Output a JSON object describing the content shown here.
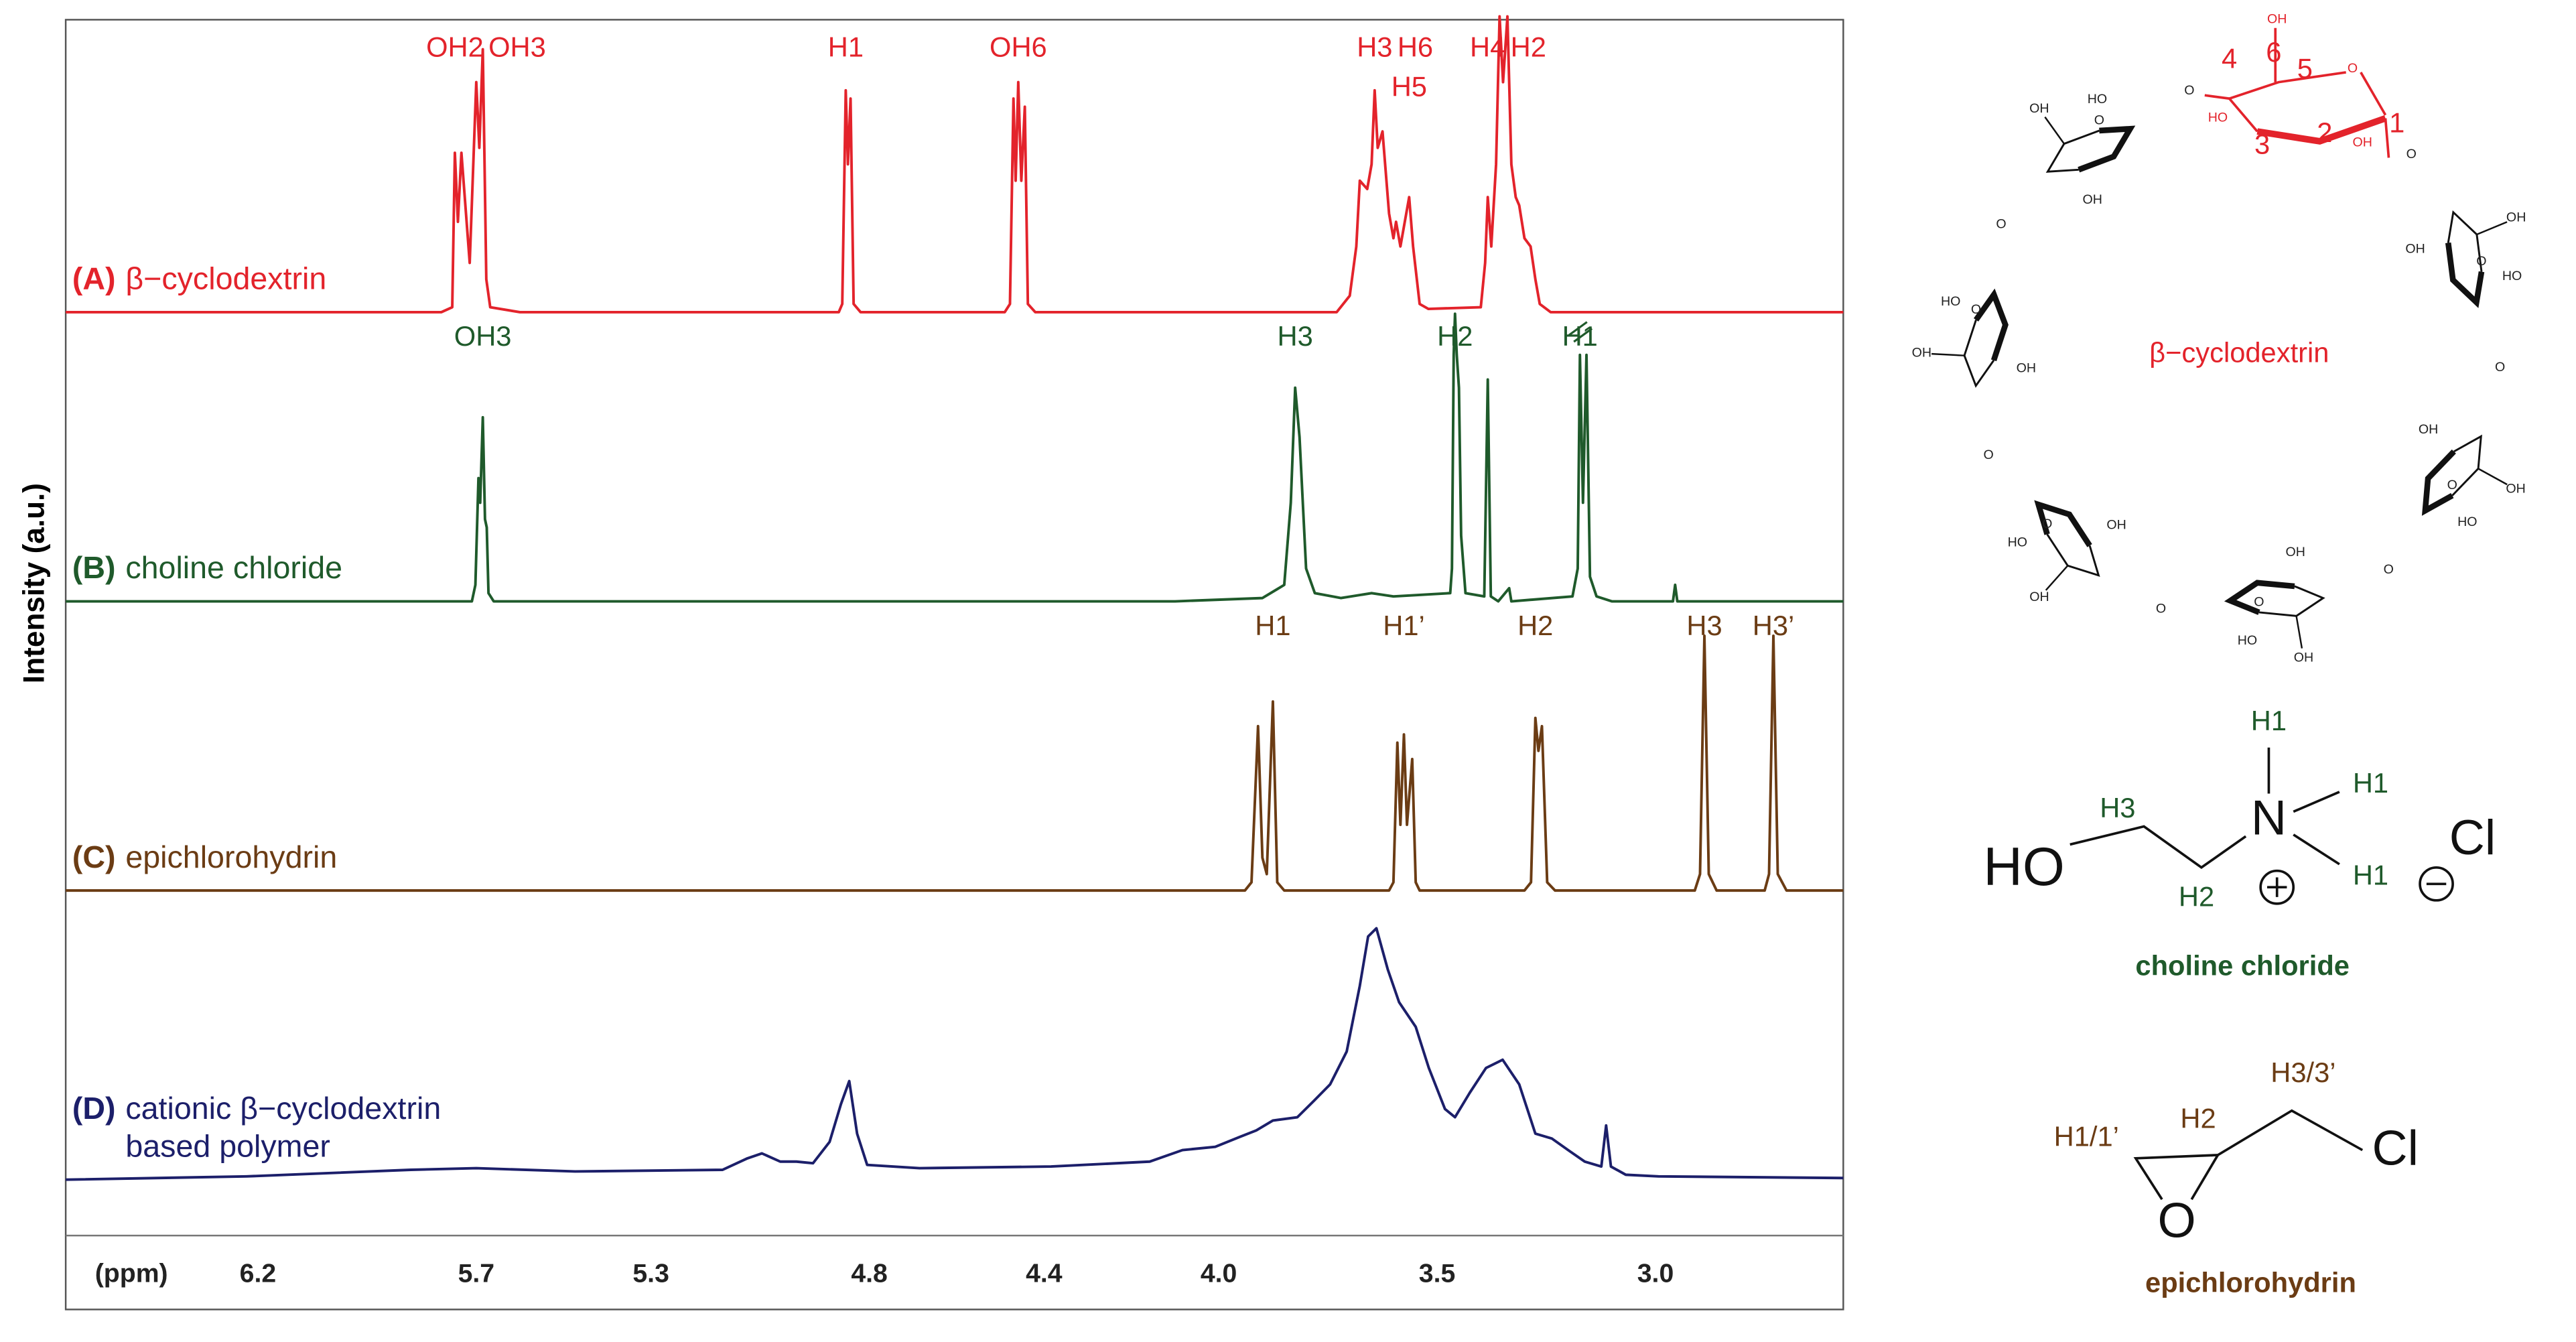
{
  "chart_data": {
    "type": "line",
    "y_label": "Intensity (a.u.)",
    "x_label": "(ppm)",
    "xlim": [
      6.64,
      2.57
    ],
    "ylim": [
      0,
      180
    ],
    "xticks": [
      6.2,
      5.7,
      5.3,
      4.8,
      4.4,
      {
        "value": 4,
        "label": "4.0"
      },
      3.5,
      {
        "value": 3,
        "label": "3.0"
      }
    ],
    "series": [
      {
        "letter": "(A)",
        "name": "β−cyclodextrin",
        "color": "#e3232b",
        "x": [
          6.64,
          5.78,
          5.755,
          5.749,
          5.742,
          5.734,
          5.715,
          5.7,
          5.693,
          5.685,
          5.677,
          5.668,
          5.6,
          4.87,
          4.862,
          4.854,
          4.849,
          4.843,
          4.836,
          4.82,
          4.49,
          4.478,
          4.47,
          4.465,
          4.459,
          4.452,
          4.444,
          4.437,
          4.42,
          3.73,
          3.7,
          3.685,
          3.677,
          3.66,
          3.65,
          3.643,
          3.636,
          3.625,
          3.61,
          3.6,
          3.594,
          3.584,
          3.564,
          3.555,
          3.54,
          3.52,
          3.4,
          3.39,
          3.384,
          3.376,
          3.365,
          3.357,
          3.349,
          3.339,
          3.33,
          3.32,
          3.312,
          3.3,
          3.286,
          3.275,
          3.265,
          3.24,
          2.57
        ],
        "values": [
          0,
          0,
          3,
          97,
          55,
          97,
          30,
          140,
          100,
          160,
          20,
          3,
          0,
          0,
          5,
          135,
          90,
          130,
          5,
          0,
          0,
          5,
          130,
          80,
          140,
          80,
          125,
          5,
          0,
          0,
          10,
          40,
          80,
          75,
          90,
          135,
          100,
          110,
          60,
          45,
          55,
          40,
          70,
          40,
          5,
          2,
          3,
          30,
          70,
          40,
          90,
          180,
          140,
          180,
          90,
          70,
          65,
          45,
          40,
          20,
          5,
          0,
          0
        ],
        "peak_labels": [
          null,
          null,
          null,
          "OH2",
          null,
          null,
          null,
          null,
          null,
          "OH3",
          null,
          null,
          null,
          null,
          null,
          "H1",
          null,
          null,
          null,
          null,
          null,
          null,
          null,
          null,
          "OH6",
          null,
          null,
          null,
          null,
          null,
          null,
          null,
          null,
          null,
          null,
          "H3",
          null,
          "H6",
          null,
          null,
          null,
          null,
          "H5",
          null,
          null,
          null,
          null,
          null,
          "H4",
          null,
          null,
          null,
          null,
          "H2",
          null,
          null,
          null,
          null,
          null,
          null,
          null,
          null,
          null
        ]
      },
      {
        "letter": "(B)",
        "name": "choline chloride",
        "color": "#1f5a2b",
        "x": [
          6.64,
          5.71,
          5.702,
          5.695,
          5.691,
          5.685,
          5.68,
          5.676,
          5.672,
          5.66,
          4.1,
          3.9,
          3.85,
          3.835,
          3.825,
          3.815,
          3.8,
          3.78,
          3.72,
          3.65,
          3.6,
          3.47,
          3.466,
          3.462,
          3.459,
          3.455,
          3.45,
          3.445,
          3.435,
          3.392,
          3.384,
          3.377,
          3.36,
          3.335,
          3.33,
          3.19,
          3.178,
          3.173,
          3.166,
          3.158,
          3.15,
          3.135,
          3.1,
          2.96,
          2.955,
          2.95,
          2.57
        ],
        "values": [
          0,
          0,
          10,
          75,
          60,
          112,
          50,
          45,
          5,
          0,
          0,
          2,
          10,
          60,
          130,
          100,
          20,
          5,
          2,
          5,
          3,
          5,
          20,
          150,
          175,
          150,
          130,
          40,
          5,
          3,
          135,
          3,
          0,
          8,
          0,
          3,
          20,
          150,
          60,
          150,
          15,
          3,
          0,
          0,
          10,
          0,
          0
        ],
        "peak_labels": [
          null,
          null,
          null,
          null,
          null,
          "OH3",
          null,
          null,
          null,
          null,
          null,
          null,
          null,
          null,
          "H3",
          null,
          null,
          null,
          null,
          null,
          null,
          null,
          null,
          null,
          "H2",
          null,
          null,
          null,
          null,
          null,
          null,
          null,
          null,
          null,
          null,
          null,
          null,
          "H1",
          null,
          null,
          null,
          null,
          null,
          null,
          null,
          null,
          null
        ]
      },
      {
        "letter": "(C)",
        "name": "epichlorohydrin",
        "color": "#6b3c14",
        "x": [
          6.64,
          3.94,
          3.925,
          3.91,
          3.9,
          3.89,
          3.876,
          3.866,
          3.85,
          3.61,
          3.6,
          3.591,
          3.584,
          3.576,
          3.569,
          3.557,
          3.549,
          3.54,
          3.3,
          3.285,
          3.275,
          3.268,
          3.26,
          3.248,
          3.23,
          2.91,
          2.898,
          2.888,
          2.878,
          2.86,
          2.75,
          2.74,
          2.73,
          2.72,
          2.7,
          2.57
        ],
        "values": [
          0,
          0,
          5,
          100,
          20,
          10,
          115,
          5,
          0,
          0,
          5,
          90,
          40,
          95,
          40,
          80,
          5,
          0,
          0,
          5,
          105,
          85,
          100,
          5,
          0,
          0,
          10,
          155,
          10,
          0,
          0,
          10,
          155,
          10,
          0,
          0
        ],
        "peak_labels": [
          null,
          null,
          null,
          null,
          null,
          null,
          "H1",
          null,
          null,
          null,
          null,
          null,
          null,
          "H1’",
          null,
          null,
          null,
          null,
          null,
          null,
          "H2",
          null,
          null,
          null,
          null,
          null,
          null,
          "H3",
          null,
          null,
          null,
          null,
          "H3’",
          null,
          null,
          null
        ]
      },
      {
        "letter": "(D)",
        "name": "cationic β−cyclodextrin based polymer",
        "color": "#1c1f6a",
        "x": [
          6.64,
          6.226,
          5.85,
          5.7,
          5.474,
          5.136,
          5.079,
          5.046,
          5.004,
          4.967,
          4.929,
          4.891,
          4.865,
          4.846,
          4.828,
          4.805,
          4.685,
          4.384,
          4.158,
          4.083,
          4.008,
          3.952,
          3.914,
          3.876,
          3.82,
          3.782,
          3.745,
          3.707,
          3.677,
          3.658,
          3.639,
          3.613,
          3.587,
          3.549,
          3.519,
          3.482,
          3.459,
          3.425,
          3.388,
          3.35,
          3.312,
          3.275,
          3.237,
          3.2,
          3.162,
          3.124,
          3.113,
          3.102,
          3.068,
          2.993,
          2.57
        ],
        "values": [
          0,
          2,
          6,
          7,
          5,
          6,
          13,
          16,
          11,
          11,
          10,
          23,
          46,
          60,
          28,
          9,
          7,
          8,
          11,
          18,
          20,
          26,
          30,
          36,
          38,
          48,
          58,
          78,
          118,
          148,
          153,
          128,
          108,
          93,
          68,
          43,
          38,
          53,
          68,
          73,
          58,
          28,
          25,
          18,
          11,
          8,
          33,
          8,
          3,
          2,
          1
        ]
      }
    ]
  },
  "structures": {
    "cyclodextrin": {
      "caption": "β−cyclodextrin",
      "numbering": [
        "4",
        "6",
        "5",
        "1",
        "2",
        "3"
      ],
      "hydroxyl": [
        "HO",
        "OH"
      ],
      "oxygen": "O"
    },
    "choline_chloride": {
      "caption": "choline chloride",
      "hydroxyl": "HO",
      "nitrogen": "N",
      "chlorine": "Cl",
      "protons": [
        "H1",
        "H2",
        "H3"
      ]
    },
    "epichlorohydrin": {
      "caption": "epichlorohydrin",
      "oxygen": "O",
      "chlorine": "Cl",
      "protons": [
        "H1/1’",
        "H2",
        "H3/3’"
      ]
    }
  }
}
